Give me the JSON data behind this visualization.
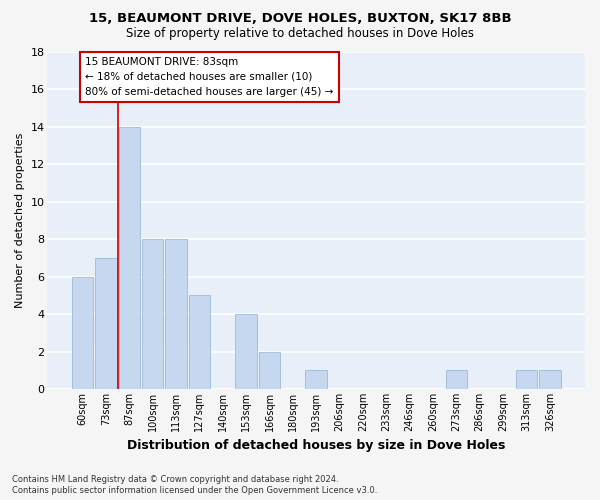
{
  "title1": "15, BEAUMONT DRIVE, DOVE HOLES, BUXTON, SK17 8BB",
  "title2": "Size of property relative to detached houses in Dove Holes",
  "xlabel": "Distribution of detached houses by size in Dove Holes",
  "ylabel": "Number of detached properties",
  "footnote1": "Contains HM Land Registry data © Crown copyright and database right 2024.",
  "footnote2": "Contains public sector information licensed under the Open Government Licence v3.0.",
  "categories": [
    "60sqm",
    "73sqm",
    "87sqm",
    "100sqm",
    "113sqm",
    "127sqm",
    "140sqm",
    "153sqm",
    "166sqm",
    "180sqm",
    "193sqm",
    "206sqm",
    "220sqm",
    "233sqm",
    "246sqm",
    "260sqm",
    "273sqm",
    "286sqm",
    "299sqm",
    "313sqm",
    "326sqm"
  ],
  "values": [
    6,
    7,
    14,
    8,
    8,
    5,
    0,
    4,
    2,
    0,
    1,
    0,
    0,
    0,
    0,
    0,
    1,
    0,
    0,
    1,
    1
  ],
  "bar_color": "#c5d8f0",
  "bar_edge_color": "#9bbbd8",
  "annotation_line1": "15 BEAUMONT DRIVE: 83sqm",
  "annotation_line2": "← 18% of detached houses are smaller (10)",
  "annotation_line3": "80% of semi-detached houses are larger (45) →",
  "annotation_box_color": "#ffffff",
  "annotation_box_edge_color": "#cc0000",
  "red_line_x": 1.5,
  "ylim": [
    0,
    18
  ],
  "yticks": [
    0,
    2,
    4,
    6,
    8,
    10,
    12,
    14,
    16,
    18
  ],
  "bg_color": "#e8eff8",
  "grid_color": "#ffffff",
  "fig_bg_color": "#f5f5f5"
}
